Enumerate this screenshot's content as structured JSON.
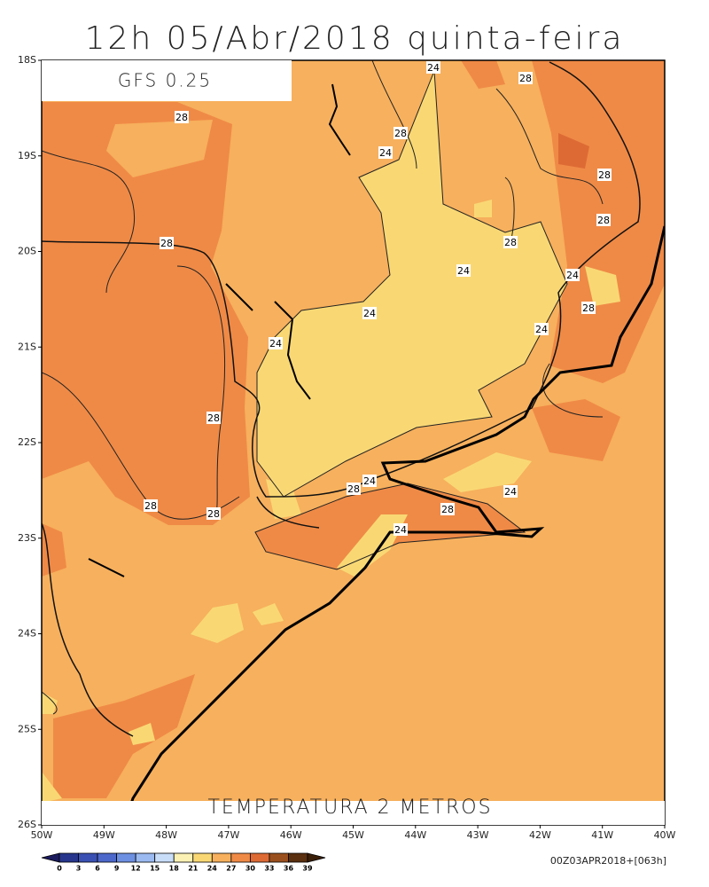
{
  "title": "12h 05/Abr/2018 quinta-feira",
  "model_label": "GFS 0.25",
  "field_label": "TEMPERATURA 2 METROS",
  "run_label": "00Z03APR2018+[063h]",
  "lat_labels": [
    "18S",
    "19S",
    "20S",
    "21S",
    "22S",
    "23S",
    "24S",
    "25S",
    "26S"
  ],
  "lon_labels": [
    "50W",
    "49W",
    "48W",
    "47W",
    "46W",
    "45W",
    "44W",
    "43W",
    "42W",
    "41W",
    "40W"
  ],
  "contour_labels": [
    "24",
    "28",
    "28",
    "28",
    "24",
    "28",
    "28",
    "28",
    "28",
    "24",
    "24",
    "24",
    "28",
    "24",
    "24",
    "28",
    "28",
    "28",
    "28",
    "24",
    "24",
    "28",
    "24"
  ],
  "colorbar": {
    "levels": [
      0,
      3,
      6,
      9,
      12,
      15,
      18,
      21,
      24,
      27,
      30,
      33,
      36,
      39
    ],
    "colors": [
      "#1b1b5e",
      "#27368c",
      "#3a50b2",
      "#4c68ca",
      "#6e90e2",
      "#9bbaf1",
      "#c8ddf8",
      "#fbf1b4",
      "#f9d874",
      "#f7b05d",
      "#ef8a46",
      "#dd6a34",
      "#9a4f1e",
      "#5a3010",
      "#3a1e08"
    ]
  }
}
